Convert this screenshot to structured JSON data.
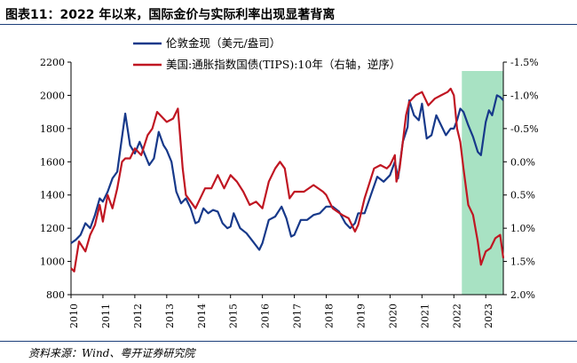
{
  "title": "图表11：2022 年以来，国际金价与实际利率出现显著背离",
  "source": "资料来源：Wind、粤开证券研究院",
  "chart_data": {
    "type": "line",
    "title": "图表11：2022 年以来，国际金价与实际利率出现显著背离",
    "xlabel": "",
    "ylabel": "",
    "x_ticks": [
      "2010",
      "2011",
      "2012",
      "2013",
      "2014",
      "2015",
      "2016",
      "2017",
      "2018",
      "2019",
      "2020",
      "2021",
      "2022",
      "2023"
    ],
    "x_range": [
      2010.0,
      2023.55
    ],
    "ylim_left": [
      800,
      2200
    ],
    "y_ticks_left": [
      "800",
      "1000",
      "1200",
      "1400",
      "1600",
      "1800",
      "2000",
      "2200"
    ],
    "ylim_right": [
      2.0,
      -1.5
    ],
    "y_ticks_right": [
      "-1.5%",
      "-1.0%",
      "-0.5%",
      "0.0%",
      "0.5%",
      "1.0%",
      "1.5%",
      "2.0%"
    ],
    "right_axis_inverted": true,
    "highlight_range": [
      2022.25,
      2023.55
    ],
    "highlight_color": "#a8e2c3",
    "legend_position": "top-left",
    "series": [
      {
        "name": "伦敦金现（美元/盎司）",
        "axis": "left",
        "color": "#17398a",
        "x": [
          2010.0,
          2010.15,
          2010.3,
          2010.45,
          2010.6,
          2010.75,
          2010.9,
          2011.0,
          2011.15,
          2011.3,
          2011.45,
          2011.6,
          2011.7,
          2011.85,
          2012.0,
          2012.15,
          2012.3,
          2012.45,
          2012.6,
          2012.75,
          2012.9,
          2013.0,
          2013.15,
          2013.3,
          2013.45,
          2013.6,
          2013.75,
          2013.9,
          2014.0,
          2014.15,
          2014.3,
          2014.45,
          2014.6,
          2014.75,
          2014.9,
          2015.0,
          2015.1,
          2015.3,
          2015.5,
          2015.7,
          2015.9,
          2016.0,
          2016.2,
          2016.4,
          2016.6,
          2016.75,
          2016.9,
          2017.0,
          2017.2,
          2017.4,
          2017.6,
          2017.8,
          2018.0,
          2018.2,
          2018.4,
          2018.6,
          2018.75,
          2018.9,
          2019.0,
          2019.2,
          2019.4,
          2019.6,
          2019.8,
          2020.0,
          2020.15,
          2020.25,
          2020.4,
          2020.55,
          2020.6,
          2020.75,
          2020.9,
          2021.0,
          2021.15,
          2021.3,
          2021.45,
          2021.6,
          2021.75,
          2021.9,
          2022.0,
          2022.1,
          2022.2,
          2022.3,
          2022.45,
          2022.6,
          2022.75,
          2022.85,
          2023.0,
          2023.1,
          2023.2,
          2023.35,
          2023.45,
          2023.55
        ],
        "y": [
          1110,
          1130,
          1160,
          1230,
          1200,
          1280,
          1380,
          1360,
          1420,
          1500,
          1540,
          1750,
          1890,
          1700,
          1650,
          1720,
          1650,
          1580,
          1620,
          1780,
          1700,
          1670,
          1600,
          1420,
          1350,
          1380,
          1320,
          1230,
          1240,
          1320,
          1290,
          1310,
          1300,
          1230,
          1200,
          1210,
          1290,
          1200,
          1170,
          1120,
          1070,
          1110,
          1250,
          1270,
          1330,
          1260,
          1150,
          1160,
          1250,
          1250,
          1280,
          1290,
          1330,
          1330,
          1300,
          1230,
          1200,
          1230,
          1290,
          1290,
          1400,
          1510,
          1480,
          1520,
          1600,
          1500,
          1720,
          1810,
          1970,
          1880,
          1850,
          1950,
          1740,
          1760,
          1880,
          1820,
          1760,
          1800,
          1800,
          1850,
          1920,
          1900,
          1820,
          1750,
          1660,
          1640,
          1840,
          1910,
          1880,
          2000,
          1990,
          1970
        ]
      },
      {
        "name": "美国:通胀指数国债(TIPS):10年（右轴，逆序）",
        "axis": "right",
        "color": "#c01622",
        "x": [
          2010.0,
          2010.1,
          2010.25,
          2010.45,
          2010.6,
          2010.75,
          2010.9,
          2011.0,
          2011.15,
          2011.3,
          2011.45,
          2011.6,
          2011.7,
          2011.85,
          2012.0,
          2012.2,
          2012.4,
          2012.55,
          2012.7,
          2012.9,
          2013.0,
          2013.2,
          2013.35,
          2013.5,
          2013.6,
          2013.75,
          2013.9,
          2014.0,
          2014.2,
          2014.4,
          2014.6,
          2014.8,
          2015.0,
          2015.2,
          2015.4,
          2015.6,
          2015.8,
          2016.0,
          2016.2,
          2016.4,
          2016.55,
          2016.7,
          2016.85,
          2017.0,
          2017.3,
          2017.6,
          2017.9,
          2018.0,
          2018.2,
          2018.5,
          2018.7,
          2018.9,
          2019.0,
          2019.2,
          2019.5,
          2019.7,
          2019.9,
          2020.0,
          2020.15,
          2020.2,
          2020.3,
          2020.5,
          2020.6,
          2020.8,
          2021.0,
          2021.2,
          2021.4,
          2021.6,
          2021.8,
          2021.9,
          2022.0,
          2022.1,
          2022.2,
          2022.3,
          2022.45,
          2022.6,
          2022.75,
          2022.85,
          2023.0,
          2023.15,
          2023.3,
          2023.45,
          2023.55
        ],
        "y": [
          1.6,
          1.65,
          1.2,
          1.35,
          1.1,
          0.95,
          0.65,
          0.9,
          0.5,
          0.7,
          0.4,
          0.0,
          -0.05,
          -0.05,
          -0.2,
          -0.1,
          -0.4,
          -0.5,
          -0.75,
          -0.65,
          -0.6,
          -0.65,
          -0.8,
          0.1,
          0.5,
          0.6,
          0.7,
          0.6,
          0.4,
          0.4,
          0.2,
          0.4,
          0.2,
          0.3,
          0.45,
          0.65,
          0.6,
          0.7,
          0.3,
          0.1,
          0.0,
          0.1,
          0.55,
          0.45,
          0.45,
          0.35,
          0.45,
          0.5,
          0.7,
          0.8,
          0.85,
          1.05,
          0.95,
          0.55,
          0.1,
          0.05,
          0.1,
          0.05,
          -0.1,
          0.3,
          0.1,
          -0.7,
          -0.9,
          -1.0,
          -1.05,
          -0.85,
          -0.95,
          -1.0,
          -1.05,
          -1.1,
          -1.0,
          -0.5,
          -0.3,
          0.1,
          0.65,
          0.8,
          1.2,
          1.55,
          1.35,
          1.3,
          1.15,
          1.1,
          1.45
        ]
      }
    ]
  }
}
